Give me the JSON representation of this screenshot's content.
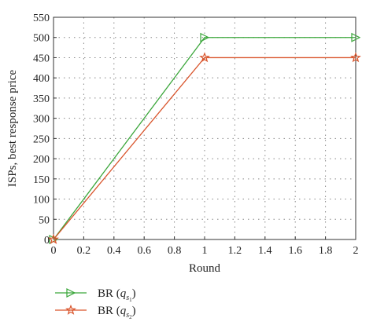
{
  "chart_data": {
    "type": "line",
    "xlabel": "Round",
    "ylabel": "ISPs, best response price",
    "xlim": [
      0,
      2
    ],
    "ylim": [
      0,
      550
    ],
    "xticks": [
      "0",
      "0.2",
      "0.4",
      "0.6",
      "0.8",
      "1",
      "1.2",
      "1.4",
      "1.6",
      "1.8",
      "2"
    ],
    "yticks": [
      "0",
      "50",
      "100",
      "150",
      "200",
      "250",
      "300",
      "350",
      "400",
      "450",
      "500",
      "550"
    ],
    "grid": "dotted",
    "legend_position": "bottom-left",
    "series": [
      {
        "name": "BR (q_{s1})",
        "legend": {
          "prefix": "BR (",
          "var": "q",
          "sub": "s",
          "subsub": "1",
          "suffix": ")"
        },
        "marker": "triangle-right",
        "color": "#3aa63a",
        "x": [
          0,
          1,
          2
        ],
        "y": [
          0,
          500,
          500
        ]
      },
      {
        "name": "BR (q_{s2})",
        "legend": {
          "prefix": "BR (",
          "var": "q",
          "sub": "s",
          "subsub": "2",
          "suffix": ")"
        },
        "marker": "star",
        "color": "#d9542b",
        "x": [
          0,
          1,
          2
        ],
        "y": [
          0,
          450,
          450
        ]
      }
    ]
  }
}
